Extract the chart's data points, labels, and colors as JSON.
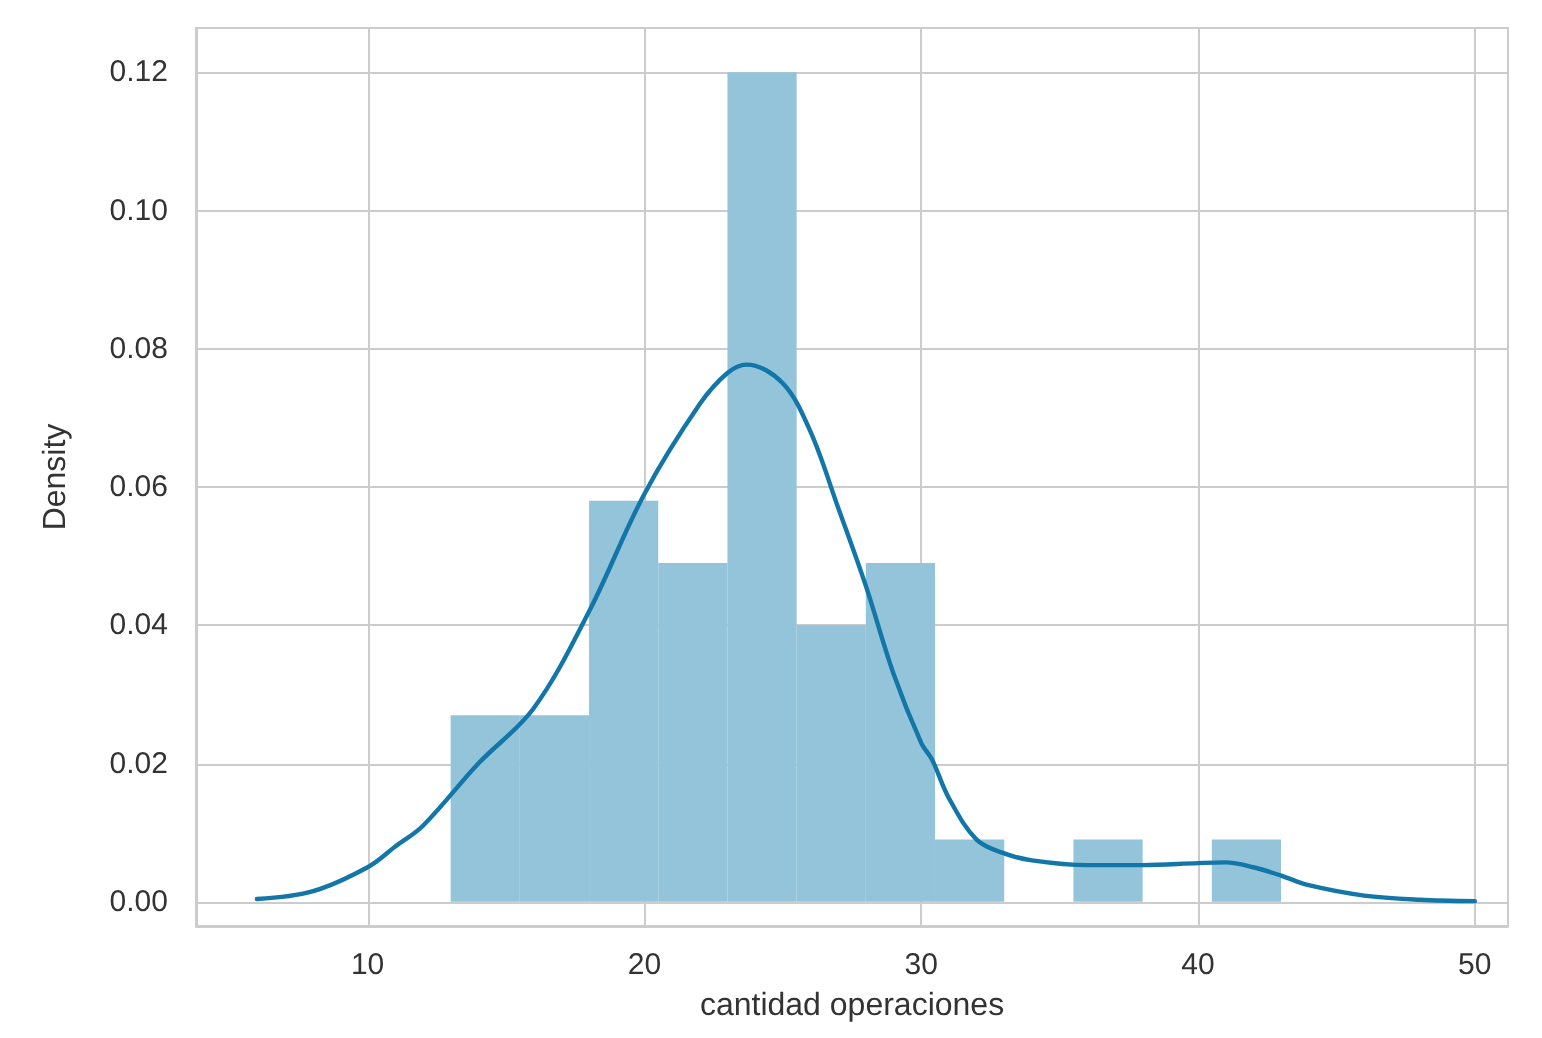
{
  "chart_data": {
    "type": "histogram",
    "xlabel": "cantidad operaciones",
    "ylabel": "Density",
    "bins": [
      13,
      15.5,
      18,
      20.5,
      23,
      25.5,
      28,
      30.5,
      33,
      35.5,
      38,
      40.5,
      43
    ],
    "values": [
      0.027,
      0.027,
      0.058,
      0.049,
      0.12,
      0.04,
      0.049,
      0.009,
      0,
      0.009,
      0,
      0.009
    ],
    "color": "#94c4da",
    "series": [
      {
        "type": "line",
        "color": "#1276a8",
        "x": [
          6,
          8,
          10,
          11,
          12,
          14,
          16,
          18,
          20,
          22,
          23,
          23.7,
          25,
          26,
          27,
          28,
          29,
          30,
          30.4,
          31,
          32,
          33,
          34,
          36,
          38,
          40,
          41,
          42,
          43,
          44,
          46,
          48,
          50
        ],
        "values": [
          0.0004,
          0.0015,
          0.005,
          0.008,
          0.011,
          0.02,
          0.028,
          0.042,
          0.059,
          0.072,
          0.0765,
          0.0777,
          0.075,
          0.068,
          0.057,
          0.0457,
          0.033,
          0.023,
          0.0205,
          0.015,
          0.009,
          0.007,
          0.006,
          0.0053,
          0.0053,
          0.0056,
          0.0057,
          0.005,
          0.0038,
          0.0024,
          0.0009,
          0.0003,
          0.0001
        ]
      }
    ],
    "xlim": [
      3.8,
      51.2
    ],
    "xticks": [
      10,
      20,
      30,
      40,
      50
    ],
    "ylim": [
      -0.0035,
      0.1264
    ],
    "yticks": [
      {
        "value": 0,
        "label": "0.00"
      },
      {
        "value": 0.02,
        "label": "0.02"
      },
      {
        "value": 0.04,
        "label": "0.04"
      },
      {
        "value": 0.06,
        "label": "0.06"
      },
      {
        "value": 0.08,
        "label": "0.08"
      },
      {
        "value": 0.1,
        "label": "0.10"
      },
      {
        "value": 0.12,
        "label": "0.12"
      }
    ],
    "grid": true,
    "marker": "none",
    "line_style": "solid"
  }
}
